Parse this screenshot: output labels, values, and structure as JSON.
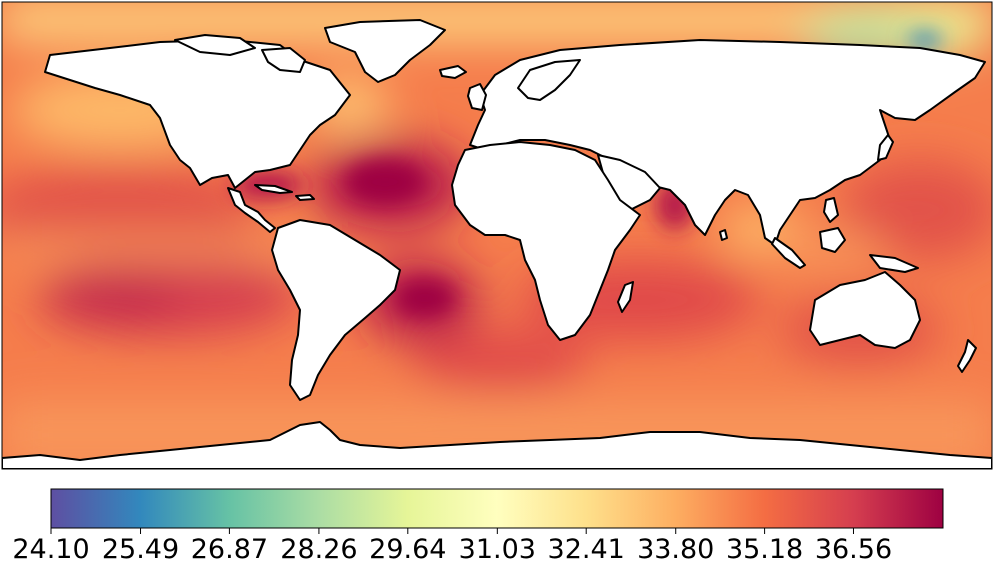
{
  "map": {
    "projection": "plate-carree",
    "variable_range": [
      24.1,
      37.95
    ],
    "land_color": "#ffffff",
    "coastline_color": "#000000"
  },
  "colorbar": {
    "colormap": "Spectral_r",
    "orientation": "horizontal",
    "ticks": [
      "24.10",
      "25.49",
      "26.87",
      "28.26",
      "29.64",
      "31.03",
      "32.41",
      "33.80",
      "35.18",
      "36.56"
    ],
    "tick_values": [
      24.1,
      25.49,
      26.87,
      28.26,
      29.64,
      31.03,
      32.41,
      33.8,
      35.18,
      36.56
    ],
    "colors": [
      "#5e4fa2",
      "#3288bd",
      "#66c2a5",
      "#abdda4",
      "#e6f598",
      "#ffffbf",
      "#fee08b",
      "#fdae61",
      "#f46d43",
      "#d53e4f",
      "#9e0142"
    ]
  }
}
